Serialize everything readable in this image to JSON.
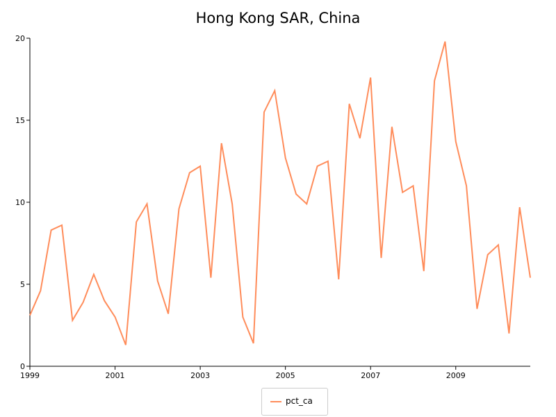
{
  "chart_data": {
    "type": "line",
    "title": "Hong Kong SAR, China",
    "xlabel": "",
    "ylabel": "",
    "xlim": [
      1999,
      2010.75
    ],
    "ylim": [
      0,
      20
    ],
    "x_ticks": [
      "1999",
      "2001",
      "2003",
      "2005",
      "2007",
      "2009"
    ],
    "y_ticks": [
      "0",
      "5",
      "10",
      "15",
      "20"
    ],
    "grid": false,
    "legend_position": "bottom-center",
    "series": [
      {
        "name": "pct_ca",
        "color": "#ff8c5a",
        "x": [
          1999.0,
          1999.25,
          1999.5,
          1999.75,
          2000.0,
          2000.25,
          2000.5,
          2000.75,
          2001.0,
          2001.25,
          2001.5,
          2001.75,
          2002.0,
          2002.25,
          2002.5,
          2002.75,
          2003.0,
          2003.25,
          2003.5,
          2003.75,
          2004.0,
          2004.25,
          2004.5,
          2004.75,
          2005.0,
          2005.25,
          2005.5,
          2005.75,
          2006.0,
          2006.25,
          2006.5,
          2006.75,
          2007.0,
          2007.25,
          2007.5,
          2007.75,
          2008.0,
          2008.25,
          2008.5,
          2008.75,
          2009.0,
          2009.25,
          2009.5,
          2009.75,
          2010.0,
          2010.25,
          2010.5,
          2010.75
        ],
        "values": [
          3.1,
          4.6,
          8.3,
          8.6,
          2.8,
          3.9,
          5.6,
          4.0,
          3.0,
          1.3,
          8.8,
          9.9,
          5.2,
          3.2,
          9.6,
          11.8,
          12.2,
          5.4,
          13.6,
          9.9,
          3.0,
          1.4,
          15.5,
          16.8,
          12.7,
          10.5,
          9.9,
          12.2,
          12.5,
          5.3,
          16.0,
          13.9,
          17.6,
          6.6,
          14.6,
          10.6,
          11.0,
          5.8,
          17.4,
          19.8,
          13.7,
          11.0,
          3.5,
          6.8,
          7.4,
          2.0,
          9.7,
          5.4
        ]
      }
    ]
  }
}
